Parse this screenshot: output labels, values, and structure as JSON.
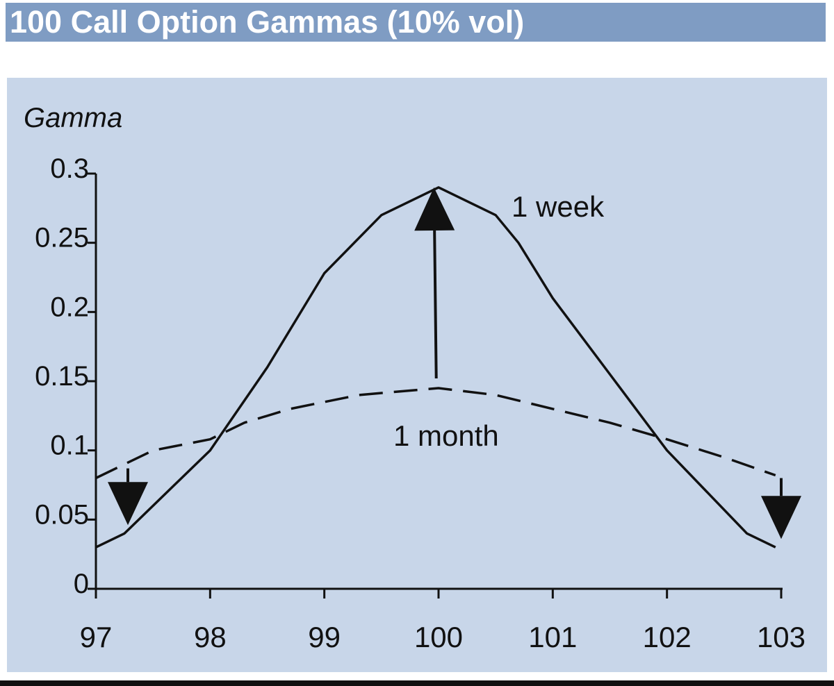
{
  "title": "100 Call Option Gammas (10% vol)",
  "chart_data": {
    "type": "line",
    "ylabel": "Gamma",
    "xlabel": "",
    "xlim": [
      97,
      103
    ],
    "ylim": [
      0,
      0.3
    ],
    "x_ticks": [
      "97",
      "98",
      "99",
      "100",
      "101",
      "102",
      "103"
    ],
    "y_ticks": [
      "0",
      "0.05",
      "0.1",
      "0.15",
      "0.2",
      "0.25",
      "0.3"
    ],
    "series": [
      {
        "name": "1 week",
        "style": "solid",
        "x": [
          97,
          97.25,
          98,
          98.5,
          99,
          99.5,
          100,
          100.5,
          100.7,
          101,
          101.5,
          102,
          102.7,
          102.95
        ],
        "y": [
          0.03,
          0.04,
          0.1,
          0.16,
          0.228,
          0.27,
          0.29,
          0.27,
          0.25,
          0.21,
          0.155,
          0.1,
          0.04,
          0.03
        ]
      },
      {
        "name": "1 month",
        "style": "dashed",
        "x": [
          97,
          97.5,
          98,
          98.3,
          98.7,
          99.3,
          100,
          100.5,
          101,
          101.5,
          102,
          102.5,
          102.95
        ],
        "y": [
          0.08,
          0.1,
          0.108,
          0.12,
          0.13,
          0.14,
          0.145,
          0.14,
          0.13,
          0.12,
          0.108,
          0.095,
          0.082
        ]
      }
    ],
    "arrows": [
      {
        "x_from": 99.98,
        "y_from": 0.152,
        "x_to": 99.96,
        "y_to": 0.29
      },
      {
        "x_from": 97.28,
        "y_from": 0.087,
        "x_to": 97.28,
        "y_to": 0.046
      },
      {
        "x_from": 103.0,
        "y_from": 0.08,
        "x_to": 103.0,
        "y_to": 0.036
      }
    ],
    "colors": {
      "panel": "#c8d6e9",
      "title_bar": "#7f9cc3",
      "line": "#111111"
    }
  }
}
